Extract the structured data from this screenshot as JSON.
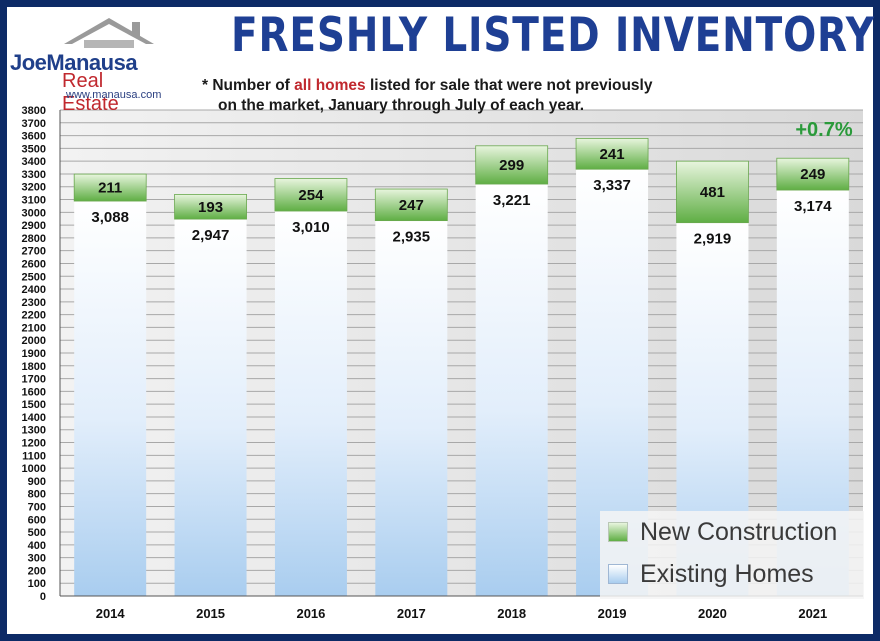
{
  "header": {
    "title": "FRESHLY LISTED INVENTORY",
    "subtitle_line1_prefix": "* Number of ",
    "subtitle_line1_highlight": "all homes",
    "subtitle_line1_suffix": " listed for sale that were not previously",
    "subtitle_line2": "on the market, January through July of each year."
  },
  "logo": {
    "name_part1": "Joe",
    "name_part2": "Manausa",
    "name_part3": "Real Estate",
    "url": "www.manausa.com"
  },
  "annotation": {
    "change_label": "+0.7%"
  },
  "legend": {
    "new_label": "New Construction",
    "existing_label": "Existing Homes"
  },
  "colors": {
    "frame": "#0d2a66",
    "title": "#1e3f94",
    "highlight": "#c0282e",
    "new_construction": "#7cc05a",
    "existing": "#dcecfa",
    "change": "#2a9a3a"
  },
  "chart_data": {
    "type": "bar",
    "stacked": true,
    "categories": [
      "2014",
      "2015",
      "2016",
      "2017",
      "2018",
      "2019",
      "2020",
      "2021"
    ],
    "series": [
      {
        "name": "Existing Homes",
        "values": [
          3088,
          2947,
          3010,
          2935,
          3221,
          3337,
          2919,
          3174
        ],
        "labels": [
          "3,088",
          "2,947",
          "3,010",
          "2,935",
          "3,221",
          "3,337",
          "2,919",
          "3,174"
        ]
      },
      {
        "name": "New Construction",
        "values": [
          211,
          193,
          254,
          247,
          299,
          241,
          481,
          249
        ],
        "labels": [
          "211",
          "193",
          "254",
          "247",
          "299",
          "241",
          "481",
          "249"
        ]
      }
    ],
    "ylim": [
      0,
      3800
    ],
    "ytick_step": 100,
    "grid": true,
    "legend_position": "bottom-right"
  }
}
